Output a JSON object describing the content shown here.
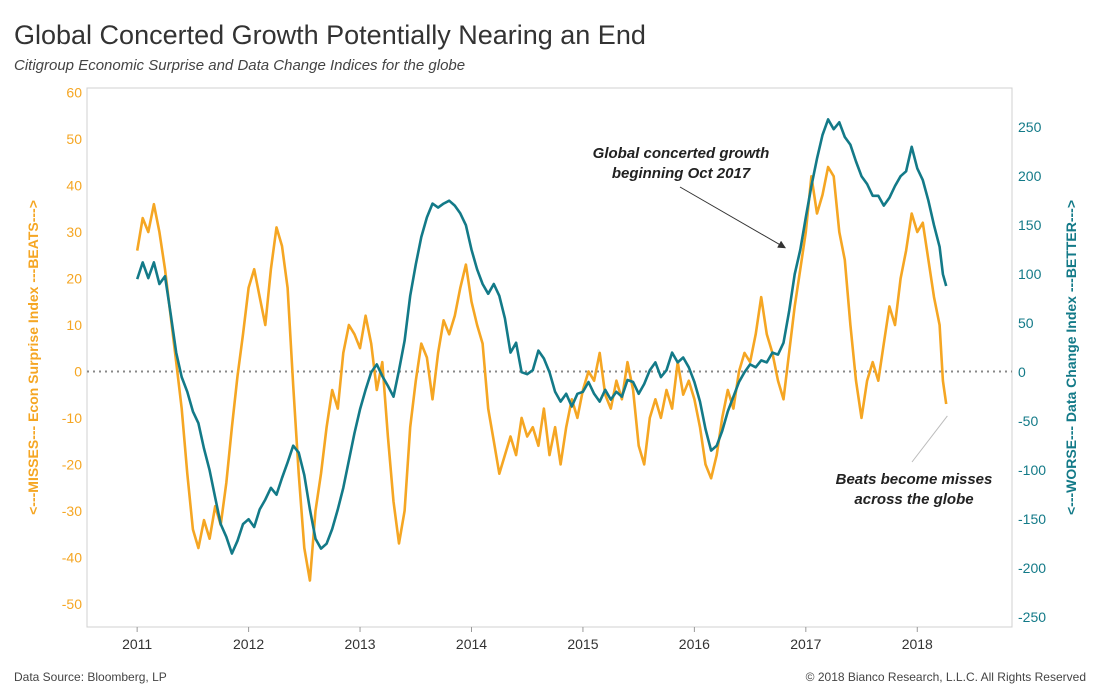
{
  "title": "Global Concerted Growth Potentially Nearing an End",
  "subtitle": "Citigroup Economic Surprise and Data Change Indices for the globe",
  "footer": {
    "source": "Data Source: Bloomberg, LP",
    "copyright": "© 2018 Bianco Research, L.L.C. All Rights Reserved"
  },
  "colors": {
    "surprise": "#F5A623",
    "change": "#137A88",
    "zero_line": "#888888"
  },
  "chart_data": {
    "type": "line",
    "x_ticks": [
      "2011",
      "2012",
      "2013",
      "2014",
      "2015",
      "2016",
      "2017",
      "2018"
    ],
    "xlim": [
      2010.55,
      2018.85
    ],
    "left_axis": {
      "label": "<---MISSES--- Econ Surprise Index ---BEATS--->",
      "ticks": [
        60,
        50,
        40,
        30,
        20,
        10,
        0,
        -10,
        -20,
        -30,
        -40,
        -50
      ],
      "ylim": [
        -55,
        61
      ]
    },
    "right_axis": {
      "label": "<---WORSE--- Data Change Index ---BETTER--->",
      "ticks": [
        250,
        200,
        150,
        100,
        50,
        0,
        -50,
        -100,
        -150,
        -200,
        -250
      ],
      "ylim": [
        -260,
        290
      ]
    },
    "zero_line": "dotted",
    "series": [
      {
        "axis": "left",
        "points": [
          [
            2011.0,
            26
          ],
          [
            2011.05,
            33
          ],
          [
            2011.1,
            30
          ],
          [
            2011.15,
            36
          ],
          [
            2011.2,
            30
          ],
          [
            2011.25,
            22
          ],
          [
            2011.3,
            12
          ],
          [
            2011.35,
            2
          ],
          [
            2011.4,
            -8
          ],
          [
            2011.45,
            -22
          ],
          [
            2011.5,
            -34
          ],
          [
            2011.55,
            -38
          ],
          [
            2011.6,
            -32
          ],
          [
            2011.65,
            -36
          ],
          [
            2011.7,
            -29
          ],
          [
            2011.75,
            -33
          ],
          [
            2011.8,
            -24
          ],
          [
            2011.85,
            -12
          ],
          [
            2011.9,
            -1
          ],
          [
            2011.95,
            8
          ],
          [
            2012.0,
            18
          ],
          [
            2012.05,
            22
          ],
          [
            2012.1,
            16
          ],
          [
            2012.15,
            10
          ],
          [
            2012.2,
            22
          ],
          [
            2012.25,
            31
          ],
          [
            2012.3,
            27
          ],
          [
            2012.35,
            18
          ],
          [
            2012.4,
            -3
          ],
          [
            2012.45,
            -22
          ],
          [
            2012.5,
            -38
          ],
          [
            2012.55,
            -45
          ],
          [
            2012.6,
            -30
          ],
          [
            2012.65,
            -22
          ],
          [
            2012.7,
            -12
          ],
          [
            2012.75,
            -4
          ],
          [
            2012.8,
            -8
          ],
          [
            2012.85,
            4
          ],
          [
            2012.9,
            10
          ],
          [
            2012.95,
            8
          ],
          [
            2013.0,
            5
          ],
          [
            2013.05,
            12
          ],
          [
            2013.1,
            6
          ],
          [
            2013.15,
            -4
          ],
          [
            2013.2,
            2
          ],
          [
            2013.25,
            -14
          ],
          [
            2013.3,
            -28
          ],
          [
            2013.35,
            -37
          ],
          [
            2013.4,
            -30
          ],
          [
            2013.45,
            -12
          ],
          [
            2013.5,
            -2
          ],
          [
            2013.55,
            6
          ],
          [
            2013.6,
            3
          ],
          [
            2013.65,
            -6
          ],
          [
            2013.7,
            4
          ],
          [
            2013.75,
            11
          ],
          [
            2013.8,
            8
          ],
          [
            2013.85,
            12
          ],
          [
            2013.9,
            18
          ],
          [
            2013.95,
            23
          ],
          [
            2014.0,
            15
          ],
          [
            2014.05,
            10
          ],
          [
            2014.1,
            6
          ],
          [
            2014.15,
            -8
          ],
          [
            2014.2,
            -15
          ],
          [
            2014.25,
            -22
          ],
          [
            2014.3,
            -18
          ],
          [
            2014.35,
            -14
          ],
          [
            2014.4,
            -18
          ],
          [
            2014.45,
            -10
          ],
          [
            2014.5,
            -14
          ],
          [
            2014.55,
            -12
          ],
          [
            2014.6,
            -16
          ],
          [
            2014.65,
            -8
          ],
          [
            2014.7,
            -18
          ],
          [
            2014.75,
            -12
          ],
          [
            2014.8,
            -20
          ],
          [
            2014.85,
            -12
          ],
          [
            2014.9,
            -6
          ],
          [
            2014.95,
            -10
          ],
          [
            2015.0,
            -4
          ],
          [
            2015.05,
            0
          ],
          [
            2015.1,
            -2
          ],
          [
            2015.15,
            4
          ],
          [
            2015.2,
            -5
          ],
          [
            2015.25,
            -8
          ],
          [
            2015.3,
            -2
          ],
          [
            2015.35,
            -6
          ],
          [
            2015.4,
            2
          ],
          [
            2015.45,
            -4
          ],
          [
            2015.5,
            -16
          ],
          [
            2015.55,
            -20
          ],
          [
            2015.6,
            -10
          ],
          [
            2015.65,
            -6
          ],
          [
            2015.7,
            -10
          ],
          [
            2015.75,
            -4
          ],
          [
            2015.8,
            -8
          ],
          [
            2015.85,
            2
          ],
          [
            2015.9,
            -5
          ],
          [
            2015.95,
            -2
          ],
          [
            2016.0,
            -6
          ],
          [
            2016.05,
            -12
          ],
          [
            2016.1,
            -20
          ],
          [
            2016.15,
            -23
          ],
          [
            2016.2,
            -18
          ],
          [
            2016.25,
            -10
          ],
          [
            2016.3,
            -4
          ],
          [
            2016.35,
            -8
          ],
          [
            2016.4,
            0
          ],
          [
            2016.45,
            4
          ],
          [
            2016.5,
            2
          ],
          [
            2016.55,
            8
          ],
          [
            2016.6,
            16
          ],
          [
            2016.65,
            8
          ],
          [
            2016.7,
            4
          ],
          [
            2016.75,
            -2
          ],
          [
            2016.8,
            -6
          ],
          [
            2016.85,
            4
          ],
          [
            2016.9,
            14
          ],
          [
            2016.95,
            22
          ],
          [
            2017.0,
            30
          ],
          [
            2017.05,
            42
          ],
          [
            2017.1,
            34
          ],
          [
            2017.15,
            38
          ],
          [
            2017.2,
            44
          ],
          [
            2017.25,
            42
          ],
          [
            2017.3,
            30
          ],
          [
            2017.35,
            24
          ],
          [
            2017.4,
            10
          ],
          [
            2017.45,
            -2
          ],
          [
            2017.5,
            -10
          ],
          [
            2017.55,
            -2
          ],
          [
            2017.6,
            2
          ],
          [
            2017.65,
            -2
          ],
          [
            2017.7,
            6
          ],
          [
            2017.75,
            14
          ],
          [
            2017.8,
            10
          ],
          [
            2017.85,
            20
          ],
          [
            2017.9,
            26
          ],
          [
            2017.95,
            34
          ],
          [
            2018.0,
            30
          ],
          [
            2018.05,
            32
          ],
          [
            2018.1,
            24
          ],
          [
            2018.15,
            16
          ],
          [
            2018.2,
            10
          ],
          [
            2018.23,
            -2
          ],
          [
            2018.26,
            -7
          ]
        ]
      },
      {
        "axis": "right",
        "points": [
          [
            2011.0,
            95
          ],
          [
            2011.05,
            112
          ],
          [
            2011.1,
            96
          ],
          [
            2011.15,
            112
          ],
          [
            2011.2,
            90
          ],
          [
            2011.25,
            98
          ],
          [
            2011.3,
            60
          ],
          [
            2011.35,
            20
          ],
          [
            2011.4,
            -5
          ],
          [
            2011.45,
            -20
          ],
          [
            2011.5,
            -40
          ],
          [
            2011.55,
            -52
          ],
          [
            2011.6,
            -78
          ],
          [
            2011.65,
            -100
          ],
          [
            2011.7,
            -128
          ],
          [
            2011.75,
            -155
          ],
          [
            2011.8,
            -168
          ],
          [
            2011.85,
            -185
          ],
          [
            2011.9,
            -172
          ],
          [
            2011.95,
            -155
          ],
          [
            2012.0,
            -150
          ],
          [
            2012.05,
            -158
          ],
          [
            2012.1,
            -140
          ],
          [
            2012.15,
            -130
          ],
          [
            2012.2,
            -118
          ],
          [
            2012.25,
            -125
          ],
          [
            2012.3,
            -108
          ],
          [
            2012.35,
            -92
          ],
          [
            2012.4,
            -75
          ],
          [
            2012.45,
            -82
          ],
          [
            2012.5,
            -105
          ],
          [
            2012.55,
            -140
          ],
          [
            2012.6,
            -170
          ],
          [
            2012.65,
            -180
          ],
          [
            2012.7,
            -175
          ],
          [
            2012.75,
            -160
          ],
          [
            2012.8,
            -140
          ],
          [
            2012.85,
            -118
          ],
          [
            2012.9,
            -90
          ],
          [
            2012.95,
            -62
          ],
          [
            2013.0,
            -38
          ],
          [
            2013.05,
            -18
          ],
          [
            2013.1,
            0
          ],
          [
            2013.15,
            8
          ],
          [
            2013.2,
            -4
          ],
          [
            2013.25,
            -14
          ],
          [
            2013.3,
            -25
          ],
          [
            2013.35,
            2
          ],
          [
            2013.4,
            32
          ],
          [
            2013.45,
            78
          ],
          [
            2013.5,
            110
          ],
          [
            2013.55,
            138
          ],
          [
            2013.6,
            158
          ],
          [
            2013.65,
            172
          ],
          [
            2013.7,
            168
          ],
          [
            2013.75,
            172
          ],
          [
            2013.8,
            175
          ],
          [
            2013.85,
            170
          ],
          [
            2013.9,
            162
          ],
          [
            2013.95,
            150
          ],
          [
            2014.0,
            125
          ],
          [
            2014.05,
            105
          ],
          [
            2014.1,
            90
          ],
          [
            2014.15,
            80
          ],
          [
            2014.2,
            90
          ],
          [
            2014.25,
            78
          ],
          [
            2014.3,
            55
          ],
          [
            2014.35,
            20
          ],
          [
            2014.4,
            30
          ],
          [
            2014.45,
            0
          ],
          [
            2014.5,
            -2
          ],
          [
            2014.55,
            2
          ],
          [
            2014.6,
            22
          ],
          [
            2014.65,
            14
          ],
          [
            2014.7,
            0
          ],
          [
            2014.75,
            -20
          ],
          [
            2014.8,
            -30
          ],
          [
            2014.85,
            -22
          ],
          [
            2014.9,
            -35
          ],
          [
            2014.95,
            -22
          ],
          [
            2015.0,
            -20
          ],
          [
            2015.05,
            -10
          ],
          [
            2015.1,
            -22
          ],
          [
            2015.15,
            -30
          ],
          [
            2015.2,
            -18
          ],
          [
            2015.25,
            -28
          ],
          [
            2015.3,
            -20
          ],
          [
            2015.35,
            -25
          ],
          [
            2015.4,
            -8
          ],
          [
            2015.45,
            -10
          ],
          [
            2015.5,
            -22
          ],
          [
            2015.55,
            -12
          ],
          [
            2015.6,
            2
          ],
          [
            2015.65,
            10
          ],
          [
            2015.7,
            -5
          ],
          [
            2015.75,
            2
          ],
          [
            2015.8,
            20
          ],
          [
            2015.85,
            10
          ],
          [
            2015.9,
            15
          ],
          [
            2015.95,
            5
          ],
          [
            2016.0,
            -10
          ],
          [
            2016.05,
            -30
          ],
          [
            2016.1,
            -58
          ],
          [
            2016.15,
            -80
          ],
          [
            2016.2,
            -75
          ],
          [
            2016.25,
            -60
          ],
          [
            2016.3,
            -40
          ],
          [
            2016.35,
            -25
          ],
          [
            2016.4,
            -10
          ],
          [
            2016.45,
            0
          ],
          [
            2016.5,
            8
          ],
          [
            2016.55,
            5
          ],
          [
            2016.6,
            12
          ],
          [
            2016.65,
            10
          ],
          [
            2016.7,
            20
          ],
          [
            2016.75,
            18
          ],
          [
            2016.8,
            30
          ],
          [
            2016.85,
            62
          ],
          [
            2016.9,
            100
          ],
          [
            2016.95,
            125
          ],
          [
            2017.0,
            158
          ],
          [
            2017.05,
            190
          ],
          [
            2017.1,
            218
          ],
          [
            2017.15,
            242
          ],
          [
            2017.2,
            258
          ],
          [
            2017.25,
            248
          ],
          [
            2017.3,
            255
          ],
          [
            2017.35,
            240
          ],
          [
            2017.4,
            232
          ],
          [
            2017.45,
            215
          ],
          [
            2017.5,
            200
          ],
          [
            2017.55,
            192
          ],
          [
            2017.6,
            180
          ],
          [
            2017.65,
            180
          ],
          [
            2017.7,
            170
          ],
          [
            2017.75,
            178
          ],
          [
            2017.8,
            190
          ],
          [
            2017.85,
            200
          ],
          [
            2017.9,
            205
          ],
          [
            2017.95,
            230
          ],
          [
            2018.0,
            208
          ],
          [
            2018.05,
            196
          ],
          [
            2018.1,
            175
          ],
          [
            2018.15,
            150
          ],
          [
            2018.2,
            128
          ],
          [
            2018.23,
            100
          ],
          [
            2018.26,
            88
          ]
        ]
      }
    ],
    "annotations": [
      {
        "text_lines": [
          "Global concerted growth",
          "beginning Oct 2017"
        ],
        "target": [
          2016.85,
          125
        ],
        "target_axis": "right"
      },
      {
        "text_lines": [
          "Beats become misses",
          "across the globe"
        ],
        "target": [
          2018.27,
          -7
        ],
        "target_axis": "left"
      }
    ]
  }
}
